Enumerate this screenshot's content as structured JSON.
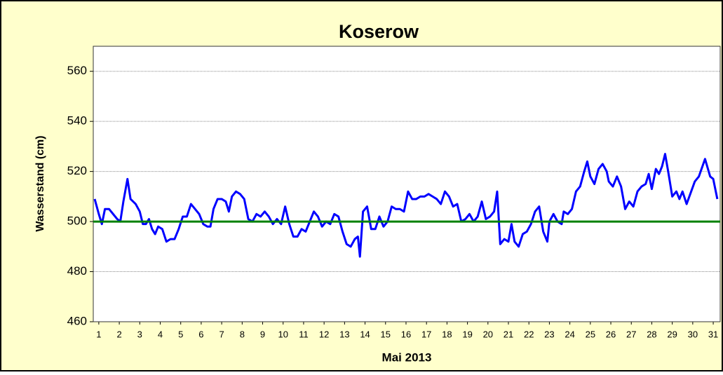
{
  "chart_data": {
    "type": "line",
    "title": "Koserow",
    "xlabel": "Mai 2013",
    "ylabel": "Wasserstand (cm)",
    "x": [
      0.8,
      1.0,
      1.15,
      1.3,
      1.5,
      1.7,
      1.9,
      2.05,
      2.2,
      2.4,
      2.55,
      2.8,
      3.0,
      3.15,
      3.3,
      3.45,
      3.6,
      3.75,
      3.9,
      4.1,
      4.3,
      4.5,
      4.7,
      4.9,
      5.1,
      5.3,
      5.5,
      5.7,
      5.9,
      6.1,
      6.3,
      6.45,
      6.6,
      6.8,
      7.0,
      7.2,
      7.35,
      7.5,
      7.7,
      7.9,
      8.1,
      8.3,
      8.5,
      8.7,
      8.9,
      9.1,
      9.3,
      9.5,
      9.7,
      9.9,
      10.1,
      10.3,
      10.5,
      10.7,
      10.9,
      11.1,
      11.3,
      11.5,
      11.7,
      11.9,
      12.1,
      12.3,
      12.5,
      12.7,
      12.9,
      13.1,
      13.3,
      13.5,
      13.65,
      13.75,
      13.9,
      14.1,
      14.3,
      14.5,
      14.7,
      14.9,
      15.1,
      15.3,
      15.5,
      15.7,
      15.9,
      16.1,
      16.3,
      16.5,
      16.7,
      16.9,
      17.1,
      17.3,
      17.5,
      17.7,
      17.9,
      18.1,
      18.3,
      18.5,
      18.7,
      18.9,
      19.1,
      19.3,
      19.5,
      19.7,
      19.9,
      20.1,
      20.3,
      20.45,
      20.6,
      20.8,
      21.0,
      21.15,
      21.3,
      21.5,
      21.7,
      21.9,
      22.1,
      22.3,
      22.5,
      22.7,
      22.9,
      23.0,
      23.2,
      23.4,
      23.6,
      23.7,
      23.9,
      24.1,
      24.3,
      24.5,
      24.7,
      24.85,
      25.0,
      25.2,
      25.4,
      25.6,
      25.8,
      25.9,
      26.1,
      26.3,
      26.5,
      26.7,
      26.9,
      27.1,
      27.3,
      27.5,
      27.7,
      27.85,
      28.0,
      28.2,
      28.35,
      28.5,
      28.65,
      28.8,
      29.0,
      29.2,
      29.35,
      29.5,
      29.7,
      30.1,
      30.3,
      30.6,
      30.85,
      31.0,
      31.2
    ],
    "series": [
      {
        "color": "#0000ff",
        "values": [
          509,
          503,
          499,
          505,
          505,
          503,
          501,
          500,
          508,
          517,
          509,
          507,
          504,
          499,
          499,
          501,
          497,
          495,
          498,
          497,
          492,
          493,
          493,
          497,
          502,
          502,
          507,
          505,
          503,
          499,
          498,
          498,
          505,
          509,
          509,
          508,
          504,
          510,
          512,
          511,
          509,
          501,
          500,
          503,
          502,
          504,
          502,
          499,
          501,
          499,
          506,
          499,
          494,
          494,
          497,
          496,
          500,
          504,
          502,
          498,
          500,
          499,
          503,
          502,
          496,
          491,
          490,
          493,
          494,
          486,
          504,
          506,
          497,
          497,
          502,
          498,
          500,
          506,
          505,
          505,
          504,
          512,
          509,
          509,
          510,
          510,
          511,
          510,
          509,
          507,
          512,
          510,
          506,
          507,
          500,
          501,
          503,
          500,
          502,
          508,
          501,
          502,
          504,
          512,
          491,
          493,
          492,
          499,
          492,
          490,
          495,
          496,
          499,
          504,
          506,
          496,
          492,
          500,
          503,
          500,
          499,
          504,
          503,
          505,
          512,
          514,
          520,
          524,
          518,
          515,
          521,
          523,
          520,
          516,
          514,
          518,
          514,
          505,
          508,
          506,
          512,
          514,
          515,
          519,
          513,
          521,
          519,
          522,
          527,
          520,
          510,
          512,
          509,
          512,
          507,
          516,
          518,
          525,
          518,
          517,
          509
        ]
      }
    ],
    "reference_line": {
      "value": 500,
      "color": "#008000"
    },
    "xlim": [
      0.73,
      31.34
    ],
    "xticks": [
      1,
      2,
      3,
      4,
      5,
      6,
      7,
      8,
      9,
      10,
      11,
      12,
      13,
      14,
      15,
      16,
      17,
      18,
      19,
      20,
      21,
      22,
      23,
      24,
      25,
      26,
      27,
      28,
      29,
      30,
      31
    ],
    "ylim": [
      460,
      570
    ],
    "yticks": [
      460,
      480,
      500,
      520,
      540,
      560
    ],
    "grid": true
  }
}
